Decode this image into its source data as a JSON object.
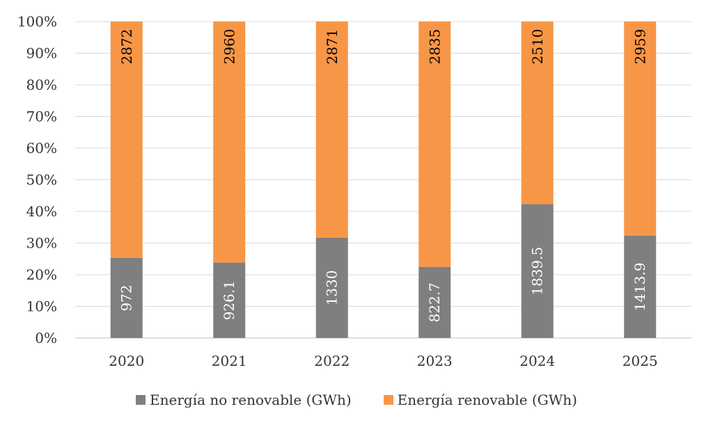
{
  "chart_data": {
    "type": "bar",
    "stacked": "percent",
    "categories": [
      "2020",
      "2021",
      "2022",
      "2023",
      "2024",
      "2025"
    ],
    "series": [
      {
        "name": "Energía no renovable (GWh)",
        "values": [
          972,
          926.1,
          1330,
          822.7,
          1839.5,
          1413.9
        ],
        "color": "#7f7f7f",
        "labels": [
          "972",
          "926.1",
          "1330",
          "822.7",
          "1839.5",
          "1413.9"
        ],
        "label_color": "#ffffff"
      },
      {
        "name": "Energía renovable (GWh)",
        "values": [
          2872,
          2960,
          2871,
          2835,
          2510,
          2959
        ],
        "color": "#f79646",
        "labels": [
          "2872",
          "2960",
          "2871",
          "2835",
          "2510",
          "2959"
        ],
        "label_color": "#000000"
      }
    ],
    "y_ticks": [
      "0%",
      "10%",
      "20%",
      "30%",
      "40%",
      "50%",
      "60%",
      "70%",
      "80%",
      "90%",
      "100%"
    ],
    "ylim": [
      0,
      100
    ],
    "grid": true,
    "legend_position": "bottom"
  }
}
